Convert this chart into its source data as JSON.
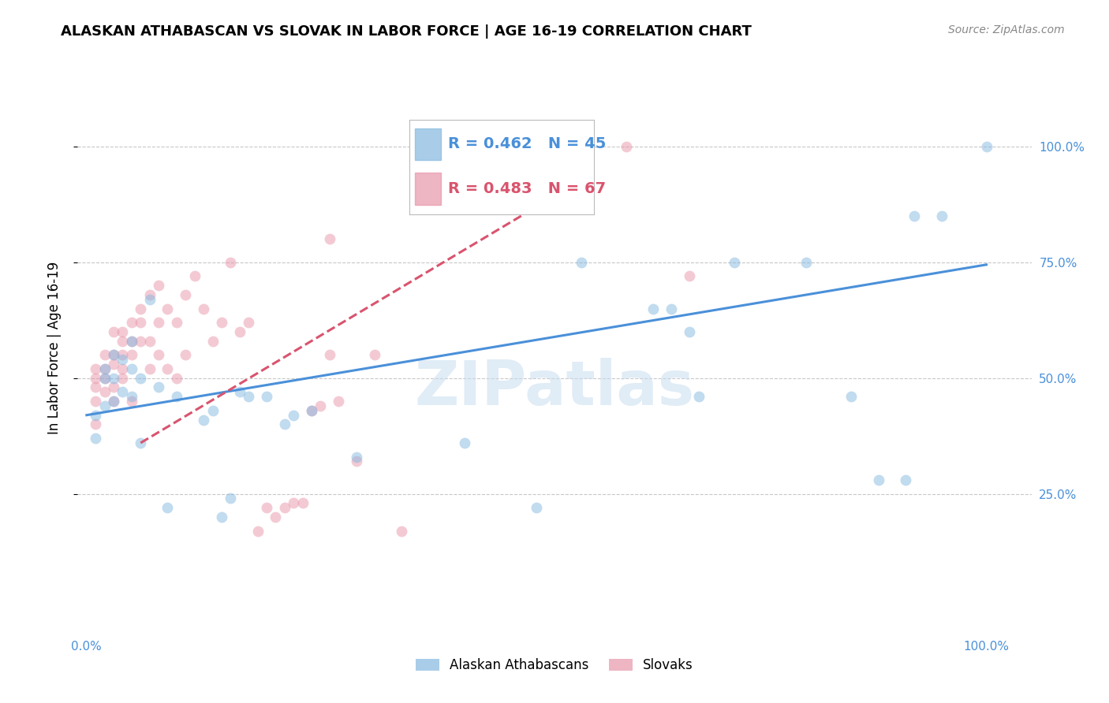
{
  "title": "ALASKAN ATHABASCAN VS SLOVAK IN LABOR FORCE | AGE 16-19 CORRELATION CHART",
  "source": "Source: ZipAtlas.com",
  "ylabel": "In Labor Force | Age 16-19",
  "legend_blue_r": "R = 0.462",
  "legend_blue_n": "N = 45",
  "legend_pink_r": "R = 0.483",
  "legend_pink_n": "N = 67",
  "legend_blue_label": "Alaskan Athabascans",
  "legend_pink_label": "Slovaks",
  "watermark": "ZIPatlas",
  "xlim": [
    -0.01,
    1.05
  ],
  "ylim": [
    -0.05,
    1.18
  ],
  "yticks": [
    0.25,
    0.5,
    0.75,
    1.0
  ],
  "ytick_labels": [
    "25.0%",
    "50.0%",
    "75.0%",
    "100.0%"
  ],
  "xticks": [
    0.0,
    0.25,
    0.5,
    0.75,
    1.0
  ],
  "xtick_labels": [
    "0.0%",
    "",
    "",
    "",
    "100.0%"
  ],
  "blue_color": "#85b8e0",
  "pink_color": "#e896aa",
  "blue_line_color": "#4a90d9",
  "pink_line_color": "#d9546e",
  "grid_color": "#c8c8c8",
  "background_color": "#ffffff",
  "blue_scatter_x": [
    0.01,
    0.01,
    0.02,
    0.02,
    0.02,
    0.03,
    0.03,
    0.03,
    0.04,
    0.04,
    0.05,
    0.05,
    0.05,
    0.06,
    0.06,
    0.07,
    0.08,
    0.09,
    0.1,
    0.13,
    0.14,
    0.15,
    0.16,
    0.17,
    0.18,
    0.2,
    0.22,
    0.23,
    0.25,
    0.3,
    0.42,
    0.5,
    0.55,
    0.63,
    0.65,
    0.67,
    0.68,
    0.72,
    0.8,
    0.85,
    0.88,
    0.91,
    0.92,
    0.95,
    1.0
  ],
  "blue_scatter_y": [
    0.37,
    0.42,
    0.44,
    0.5,
    0.52,
    0.45,
    0.5,
    0.55,
    0.47,
    0.54,
    0.46,
    0.52,
    0.58,
    0.36,
    0.5,
    0.67,
    0.48,
    0.22,
    0.46,
    0.41,
    0.43,
    0.2,
    0.24,
    0.47,
    0.46,
    0.46,
    0.4,
    0.42,
    0.43,
    0.33,
    0.36,
    0.22,
    0.75,
    0.65,
    0.65,
    0.6,
    0.46,
    0.75,
    0.75,
    0.46,
    0.28,
    0.28,
    0.85,
    0.85,
    1.0
  ],
  "pink_scatter_x": [
    0.01,
    0.01,
    0.01,
    0.01,
    0.01,
    0.02,
    0.02,
    0.02,
    0.02,
    0.03,
    0.03,
    0.03,
    0.03,
    0.03,
    0.04,
    0.04,
    0.04,
    0.04,
    0.04,
    0.05,
    0.05,
    0.05,
    0.05,
    0.06,
    0.06,
    0.06,
    0.07,
    0.07,
    0.07,
    0.08,
    0.08,
    0.08,
    0.09,
    0.09,
    0.1,
    0.1,
    0.11,
    0.11,
    0.12,
    0.13,
    0.14,
    0.15,
    0.16,
    0.17,
    0.18,
    0.19,
    0.2,
    0.21,
    0.22,
    0.23,
    0.24,
    0.25,
    0.26,
    0.27,
    0.27,
    0.28,
    0.3,
    0.32,
    0.35,
    0.37,
    0.4,
    0.42,
    0.45,
    0.5,
    0.52,
    0.6,
    0.67
  ],
  "pink_scatter_y": [
    0.5,
    0.48,
    0.52,
    0.45,
    0.4,
    0.55,
    0.52,
    0.5,
    0.47,
    0.55,
    0.53,
    0.6,
    0.48,
    0.45,
    0.6,
    0.58,
    0.55,
    0.52,
    0.5,
    0.62,
    0.58,
    0.55,
    0.45,
    0.65,
    0.62,
    0.58,
    0.68,
    0.58,
    0.52,
    0.7,
    0.62,
    0.55,
    0.65,
    0.52,
    0.62,
    0.5,
    0.68,
    0.55,
    0.72,
    0.65,
    0.58,
    0.62,
    0.75,
    0.6,
    0.62,
    0.17,
    0.22,
    0.2,
    0.22,
    0.23,
    0.23,
    0.43,
    0.44,
    0.8,
    0.55,
    0.45,
    0.32,
    0.55,
    0.17,
    1.0,
    1.0,
    1.0,
    1.0,
    1.0,
    1.0,
    1.0,
    0.72
  ],
  "blue_trend_x": [
    0.0,
    1.0
  ],
  "blue_trend_y": [
    0.42,
    0.745
  ],
  "pink_trend_x": [
    0.06,
    0.5
  ],
  "pink_trend_y": [
    0.36,
    0.87
  ],
  "title_fontsize": 13,
  "source_fontsize": 10,
  "axis_label_fontsize": 12,
  "tick_fontsize": 11,
  "legend_fontsize": 13,
  "scatter_size": 100,
  "scatter_alpha": 0.5,
  "line_width": 2.2
}
